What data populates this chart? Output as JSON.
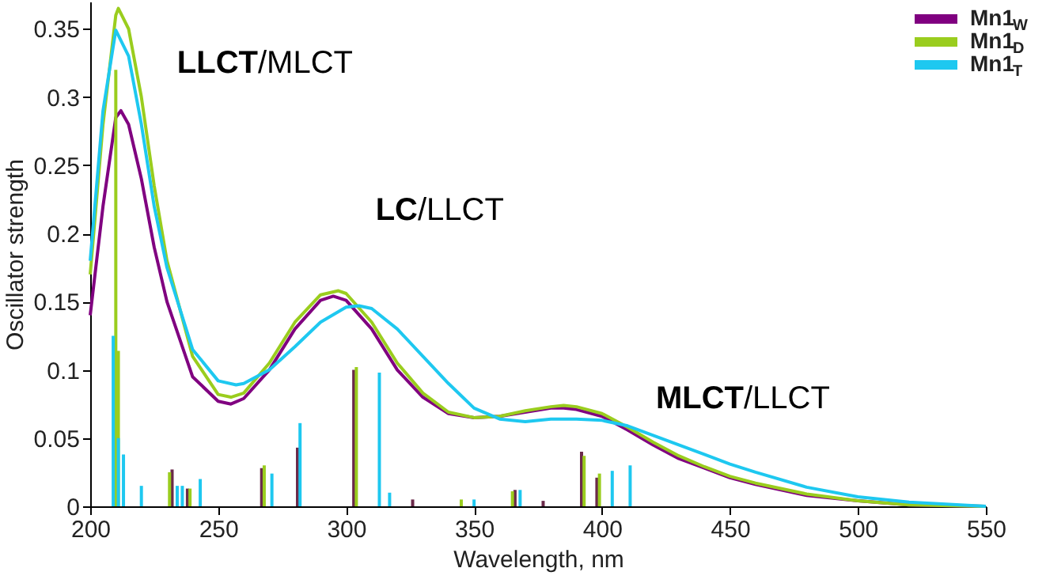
{
  "chart_data": {
    "type": "line",
    "xlabel": "Wavelength, nm",
    "ylabel": "Oscillator strength",
    "xlim": [
      200,
      550
    ],
    "xticks": [
      200,
      250,
      300,
      350,
      400,
      450,
      500,
      550
    ],
    "ylim": [
      0,
      0.37
    ],
    "yticks": [
      0,
      0.05,
      0.1,
      0.15,
      0.2,
      0.25,
      0.3,
      0.35
    ],
    "grid": false,
    "legend": "top right",
    "marker": "none",
    "line_style": "solid",
    "annotations": [
      "LLCT/MLCT",
      "LC/LLCT",
      "MLCT/LLCT"
    ],
    "series": [
      {
        "name": "Mn1$_{W}$",
        "color": "#800080",
        "x": [
          200,
          205,
          210,
          212,
          215,
          220,
          225,
          230,
          240,
          250,
          255,
          260,
          270,
          280,
          290,
          295,
          300,
          310,
          320,
          330,
          340,
          350,
          360,
          370,
          380,
          385,
          390,
          400,
          410,
          420,
          430,
          440,
          450,
          460,
          480,
          500,
          520,
          550
        ],
        "values": [
          0.14,
          0.22,
          0.285,
          0.29,
          0.28,
          0.24,
          0.19,
          0.15,
          0.095,
          0.077,
          0.075,
          0.079,
          0.1,
          0.13,
          0.151,
          0.154,
          0.151,
          0.13,
          0.1,
          0.08,
          0.068,
          0.065,
          0.066,
          0.069,
          0.072,
          0.072,
          0.071,
          0.066,
          0.056,
          0.045,
          0.035,
          0.028,
          0.021,
          0.016,
          0.008,
          0.004,
          0.001,
          0.0
        ]
      },
      {
        "name": "Mn1$_{D}$",
        "color": "#9acd1e",
        "x": [
          200,
          205,
          210,
          211,
          215,
          220,
          225,
          230,
          240,
          250,
          255,
          260,
          270,
          280,
          290,
          297,
          300,
          310,
          320,
          330,
          340,
          350,
          360,
          370,
          380,
          385,
          390,
          400,
          410,
          420,
          430,
          440,
          450,
          460,
          480,
          500,
          520,
          550
        ],
        "values": [
          0.17,
          0.28,
          0.36,
          0.365,
          0.35,
          0.3,
          0.235,
          0.18,
          0.11,
          0.082,
          0.08,
          0.083,
          0.105,
          0.135,
          0.155,
          0.158,
          0.156,
          0.135,
          0.105,
          0.083,
          0.069,
          0.065,
          0.066,
          0.07,
          0.073,
          0.074,
          0.073,
          0.068,
          0.058,
          0.047,
          0.037,
          0.029,
          0.022,
          0.017,
          0.009,
          0.004,
          0.001,
          0.0
        ]
      },
      {
        "name": "Mn1$_{T}$",
        "color": "#1ec8f0",
        "x": [
          200,
          205,
          210,
          215,
          220,
          225,
          230,
          240,
          250,
          257,
          260,
          270,
          280,
          290,
          300,
          305,
          310,
          320,
          330,
          340,
          350,
          360,
          370,
          380,
          390,
          400,
          410,
          420,
          430,
          440,
          450,
          460,
          480,
          500,
          520,
          550
        ],
        "values": [
          0.18,
          0.29,
          0.349,
          0.33,
          0.28,
          0.22,
          0.175,
          0.115,
          0.092,
          0.089,
          0.09,
          0.1,
          0.117,
          0.135,
          0.146,
          0.147,
          0.145,
          0.13,
          0.11,
          0.09,
          0.072,
          0.064,
          0.062,
          0.064,
          0.064,
          0.063,
          0.059,
          0.052,
          0.045,
          0.038,
          0.031,
          0.025,
          0.014,
          0.007,
          0.003,
          0.0
        ]
      },
      {
        "type": "bar",
        "color": "#6b2a4a",
        "x": [
          232,
          238,
          267,
          281,
          303,
          326,
          366,
          377,
          392,
          398
        ],
        "values": [
          0.027,
          0.013,
          0.028,
          0.043,
          0.1,
          0.005,
          0.012,
          0.004,
          0.04,
          0.021
        ]
      },
      {
        "type": "bar",
        "color": "#9acd1e",
        "x": [
          210,
          211,
          231,
          239,
          268,
          304,
          345,
          365,
          393,
          399
        ],
        "values": [
          0.32,
          0.114,
          0.025,
          0.013,
          0.03,
          0.102,
          0.005,
          0.011,
          0.037,
          0.024
        ]
      },
      {
        "type": "bar",
        "color": "#1ec8f0",
        "x": [
          209,
          211,
          213,
          220,
          234,
          236,
          243,
          271,
          282,
          313,
          317,
          350,
          368,
          404,
          411
        ],
        "values": [
          0.125,
          0.05,
          0.038,
          0.015,
          0.015,
          0.015,
          0.02,
          0.024,
          0.061,
          0.098,
          0.01,
          0.005,
          0.012,
          0.026,
          0.03
        ]
      }
    ]
  }
}
